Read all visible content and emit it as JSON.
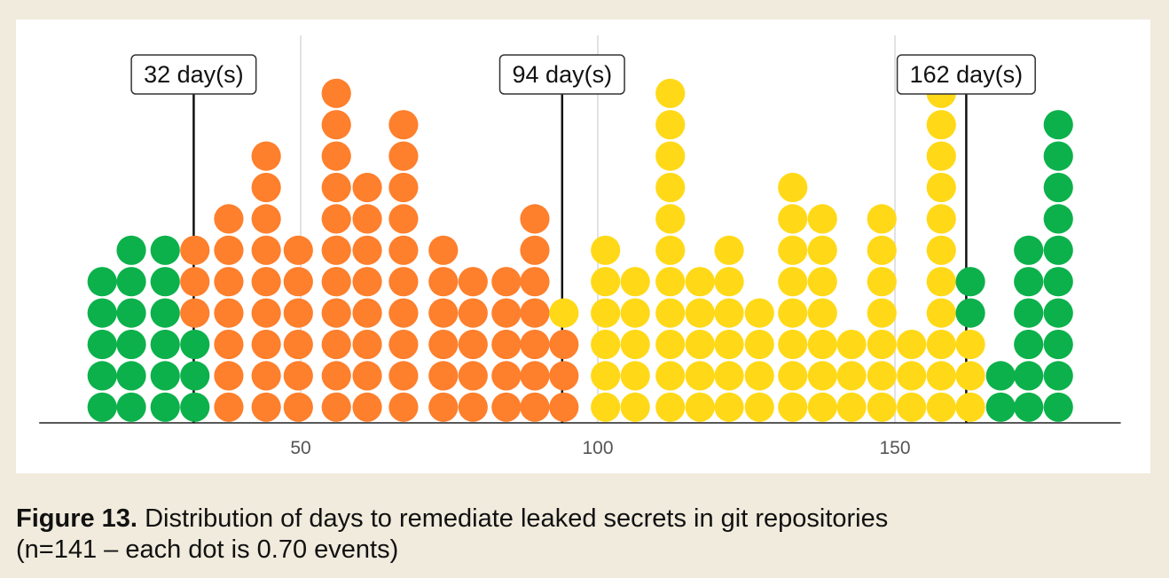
{
  "chart_data": {
    "type": "dot",
    "x": [
      16.6,
      21.5,
      27.2,
      32.2,
      37.9,
      44.2,
      49.6,
      56,
      61.2,
      67.3,
      74,
      79,
      84.6,
      89.4,
      94.3,
      101.3,
      106.3,
      112.2,
      117.2,
      122.1,
      127.2,
      132.8,
      137.8,
      142.7,
      147.8,
      152.8,
      157.8,
      162.7,
      167.8,
      172.5,
      177.5
    ],
    "series": [
      {
        "color": "#0cb14b",
        "values": [
          5,
          6,
          6,
          3,
          null,
          null,
          null,
          null,
          null,
          null,
          null,
          null,
          null,
          null,
          null,
          null,
          null,
          null,
          null,
          null,
          null,
          null,
          null,
          null,
          null,
          null,
          null,
          null,
          null,
          null,
          null
        ]
      },
      {
        "color": "#fe7f2c",
        "values": [
          null,
          null,
          null,
          3,
          7,
          9,
          6,
          11,
          8,
          10,
          6,
          5,
          5,
          7,
          3,
          null,
          null,
          null,
          null,
          null,
          null,
          null,
          null,
          null,
          null,
          null,
          null,
          null,
          null,
          null,
          null
        ]
      },
      {
        "color": "#ffd917",
        "values": [
          null,
          null,
          null,
          null,
          null,
          null,
          null,
          null,
          null,
          null,
          null,
          null,
          null,
          null,
          1,
          6,
          5,
          11,
          5,
          6,
          4,
          8,
          7,
          3,
          7,
          3,
          11,
          3,
          null,
          null,
          null
        ]
      },
      {
        "color": "#0cb14b",
        "values": [
          null,
          null,
          null,
          null,
          null,
          null,
          null,
          null,
          null,
          null,
          null,
          null,
          null,
          null,
          null,
          null,
          null,
          null,
          null,
          null,
          null,
          null,
          null,
          null,
          null,
          null,
          null,
          2,
          2,
          6,
          10
        ]
      }
    ],
    "xlim": [
      6,
      188
    ],
    "xticks": [
      50,
      100,
      150
    ],
    "grid": true,
    "annotations": [
      {
        "x": 32,
        "label": "32 day(s)"
      },
      {
        "x": 94,
        "label": "94 day(s)"
      },
      {
        "x": 162,
        "label": "162 day(s)"
      }
    ],
    "caption_label": "Figure 13.",
    "caption_lines": [
      "Distribution of days to remediate leaked secrets in git repositories",
      "(n=141 – each dot is 0.70 events)"
    ]
  }
}
